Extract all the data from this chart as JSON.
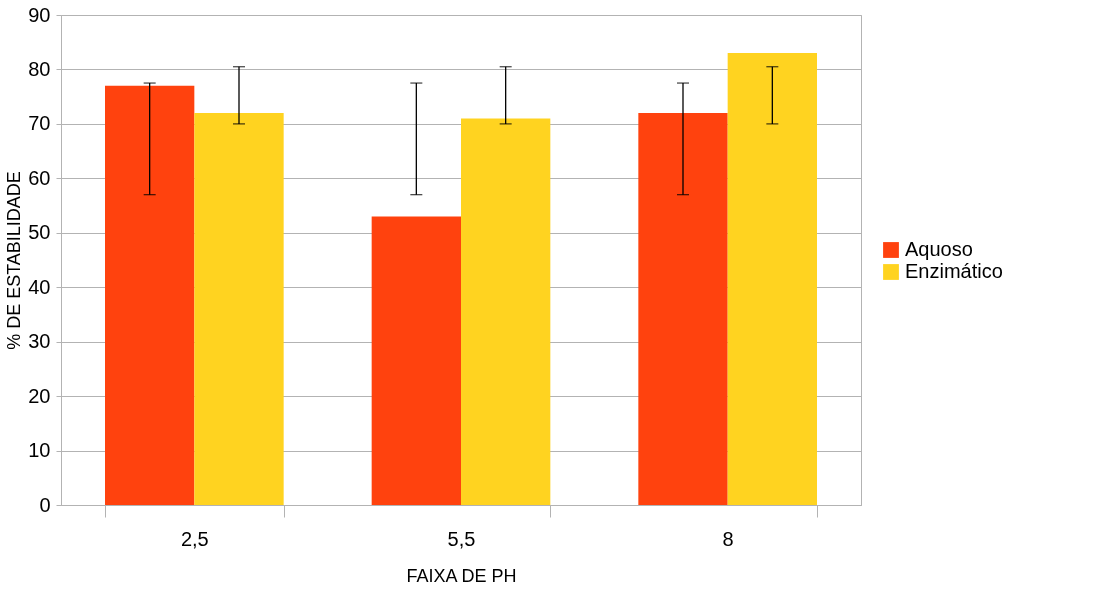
{
  "chart_data": {
    "type": "bar",
    "categories": [
      "2,5",
      "5,5",
      "8"
    ],
    "xlabel": "FAIXA DE PH",
    "ylabel": "% DE ESTABILIDADE",
    "series": [
      {
        "name": "Aquoso",
        "color": "#ff420e",
        "values": [
          77,
          53,
          72
        ],
        "errors": [
          [
            57,
            77.5
          ],
          [
            57,
            77.5
          ],
          [
            57,
            77.5
          ]
        ]
      },
      {
        "name": "Enzimático",
        "color": "#ffd320",
        "values": [
          72,
          71,
          83
        ],
        "errors": [
          [
            70,
            80.5
          ],
          [
            70,
            80.5
          ],
          [
            70,
            80.5
          ]
        ]
      }
    ],
    "ylim": [
      0,
      90
    ],
    "yticks": [
      0,
      10,
      20,
      30,
      40,
      50,
      60,
      70,
      80,
      90
    ],
    "grid": "y",
    "legend": "right"
  }
}
